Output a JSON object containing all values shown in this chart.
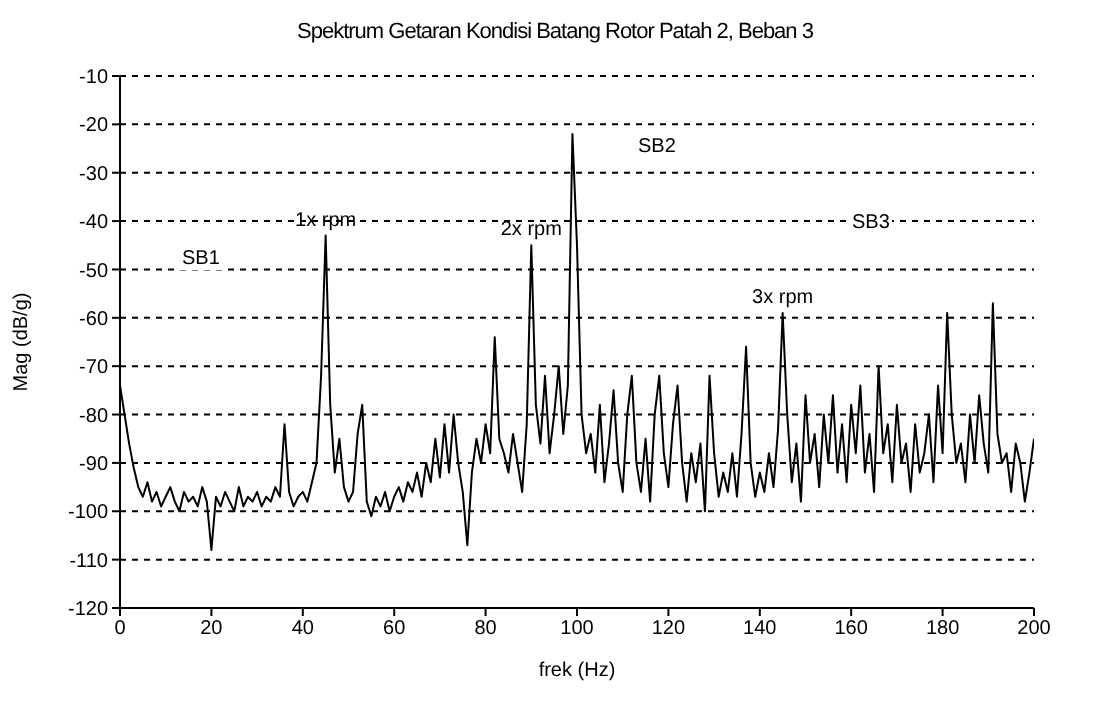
{
  "chart_data": {
    "type": "line",
    "title": "Spektrum Getaran Kondisi Batang Rotor Patah 2, Beban 3",
    "xlabel": "frek (Hz)",
    "ylabel": "Mag (dB/g)",
    "x": [
      0,
      1,
      2,
      3,
      4,
      5,
      6,
      7,
      8,
      9,
      10,
      11,
      12,
      13,
      14,
      15,
      16,
      17,
      18,
      19,
      20,
      21,
      22,
      23,
      24,
      25,
      26,
      27,
      28,
      29,
      30,
      31,
      32,
      33,
      34,
      35,
      36,
      37,
      38,
      39,
      40,
      41,
      42,
      43,
      44,
      45,
      46,
      47,
      48,
      49,
      50,
      51,
      52,
      53,
      54,
      55,
      56,
      57,
      58,
      59,
      60,
      61,
      62,
      63,
      64,
      65,
      66,
      67,
      68,
      69,
      70,
      71,
      72,
      73,
      74,
      75,
      76,
      77,
      78,
      79,
      80,
      81,
      82,
      83,
      84,
      85,
      86,
      87,
      88,
      89,
      90,
      91,
      92,
      93,
      94,
      95,
      96,
      97,
      98,
      99,
      100,
      101,
      102,
      103,
      104,
      105,
      106,
      107,
      108,
      109,
      110,
      111,
      112,
      113,
      114,
      115,
      116,
      117,
      118,
      119,
      120,
      121,
      122,
      123,
      124,
      125,
      126,
      127,
      128,
      129,
      130,
      131,
      132,
      133,
      134,
      135,
      136,
      137,
      138,
      139,
      140,
      141,
      142,
      143,
      144,
      145,
      146,
      147,
      148,
      149,
      150,
      151,
      152,
      153,
      154,
      155,
      156,
      157,
      158,
      159,
      160,
      161,
      162,
      163,
      164,
      165,
      166,
      167,
      168,
      169,
      170,
      171,
      172,
      173,
      174,
      175,
      176,
      177,
      178,
      179,
      180,
      181,
      182,
      183,
      184,
      185,
      186,
      187,
      188,
      189,
      190,
      191,
      192,
      193,
      194,
      195,
      196,
      197,
      198,
      199,
      200
    ],
    "series": [
      {
        "color": "#000000",
        "values": [
          -74,
          -80,
          -86,
          -91,
          -95,
          -97,
          -94,
          -98,
          -96,
          -99,
          -97,
          -95,
          -98,
          -100,
          -96,
          -98,
          -97,
          -99,
          -95,
          -98,
          -108,
          -97,
          -99,
          -96,
          -98,
          -100,
          -95,
          -99,
          -97,
          -98,
          -96,
          -99,
          -97,
          -98,
          -95,
          -97,
          -82,
          -96,
          -99,
          -97,
          -96,
          -98,
          -94,
          -90,
          -72,
          -43,
          -78,
          -92,
          -85,
          -95,
          -98,
          -96,
          -84,
          -78,
          -98,
          -101,
          -97,
          -99,
          -96,
          -100,
          -97,
          -95,
          -98,
          -94,
          -96,
          -92,
          -97,
          -90,
          -94,
          -85,
          -93,
          -82,
          -92,
          -80,
          -90,
          -96,
          -107,
          -92,
          -85,
          -90,
          -82,
          -88,
          -64,
          -85,
          -88,
          -92,
          -84,
          -90,
          -96,
          -82,
          -45,
          -78,
          -86,
          -72,
          -88,
          -80,
          -70,
          -84,
          -74,
          -22,
          -45,
          -80,
          -88,
          -84,
          -92,
          -78,
          -94,
          -86,
          -75,
          -90,
          -96,
          -80,
          -72,
          -90,
          -96,
          -85,
          -98,
          -80,
          -72,
          -88,
          -95,
          -82,
          -74,
          -90,
          -98,
          -88,
          -94,
          -86,
          -100,
          -72,
          -88,
          -97,
          -92,
          -96,
          -88,
          -97,
          -84,
          -66,
          -90,
          -97,
          -92,
          -96,
          -88,
          -95,
          -83,
          -59,
          -80,
          -94,
          -86,
          -98,
          -76,
          -90,
          -84,
          -95,
          -80,
          -90,
          -76,
          -92,
          -82,
          -94,
          -78,
          -88,
          -74,
          -92,
          -84,
          -96,
          -70,
          -88,
          -82,
          -94,
          -78,
          -90,
          -86,
          -96,
          -82,
          -92,
          -88,
          -80,
          -94,
          -74,
          -88,
          -59,
          -80,
          -90,
          -86,
          -94,
          -80,
          -90,
          -76,
          -86,
          -92,
          -57,
          -84,
          -90,
          -88,
          -96,
          -86,
          -90,
          -98,
          -92,
          -85
        ]
      }
    ],
    "xlim": [
      0,
      200
    ],
    "xticks": [
      0,
      20,
      40,
      60,
      80,
      100,
      120,
      140,
      160,
      180,
      200
    ],
    "ylim": [
      -120,
      -10
    ],
    "yticks": [
      -10,
      -20,
      -30,
      -40,
      -50,
      -60,
      -70,
      -80,
      -90,
      -100,
      -110,
      -120
    ],
    "grid": "y",
    "line_style": "solid",
    "annotations": [
      {
        "text": "1x rpm",
        "x": 45,
        "y": -43
      },
      {
        "text": "2x rpm",
        "x": 90,
        "y": -45
      },
      {
        "text": "3x rpm",
        "x": 145,
        "y": -59
      },
      "SB1",
      "SB2",
      "SB3"
    ]
  }
}
